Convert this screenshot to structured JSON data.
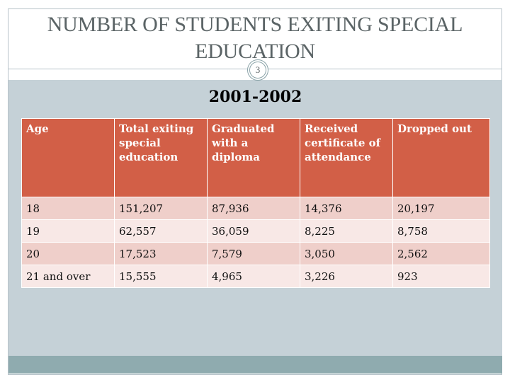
{
  "slide": {
    "title": "NUMBER OF STUDENTS EXITING SPECIAL EDUCATION",
    "page_number": "3",
    "subtitle": "2001-2002"
  },
  "table": {
    "headers": [
      "Age",
      "Total exiting special education",
      "Graduated with a diploma",
      "Received certificate of attendance",
      "Dropped out"
    ],
    "rows": [
      [
        "18",
        "151,207",
        "87,936",
        "14,376",
        "20,197"
      ],
      [
        "19",
        "62,557",
        "36,059",
        "8,225",
        "8,758"
      ],
      [
        "20",
        "17,523",
        "7,579",
        "3,050",
        "2,562"
      ],
      [
        "21 and over",
        "15,555",
        "4,965",
        "3,226",
        "923"
      ]
    ]
  },
  "colors": {
    "header_bg": "#d25f47",
    "row_odd_bg": "#efcfca",
    "row_even_bg": "#f8e8e6",
    "panel_bg": "#c5d1d7",
    "bottom_bar": "#8fabaf",
    "title_text": "#5b6466"
  }
}
